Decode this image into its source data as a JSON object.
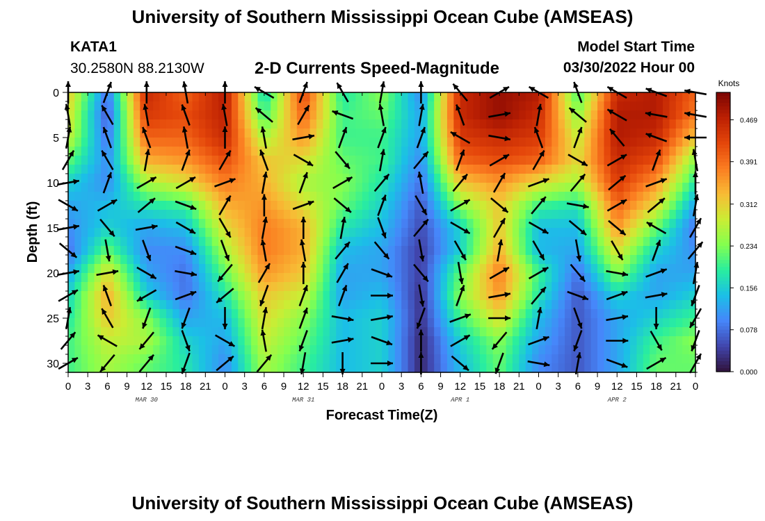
{
  "header": {
    "title": "University of Southern Mississippi Ocean Cube (AMSEAS)",
    "station_id": "KATA1",
    "coordinates": "30.2580N  88.2130W",
    "plot_title": "2-D Currents Speed-Magnitude",
    "model_start_label": "Model Start Time",
    "model_start_value": "03/30/2022 Hour 00"
  },
  "footer": {
    "title": "University of Southern Mississippi Ocean Cube (AMSEAS)"
  },
  "chart_data": {
    "type": "heatmap",
    "xlabel": "Forecast Time(Z)",
    "ylabel": "Depth (ft)",
    "x_tick_labels": [
      "0",
      "3",
      "6",
      "9",
      "12",
      "15",
      "18",
      "21",
      "0",
      "3",
      "6",
      "9",
      "12",
      "15",
      "18",
      "21",
      "0",
      "3",
      "6",
      "9",
      "12",
      "15",
      "18",
      "21",
      "0",
      "3",
      "6",
      "9",
      "12",
      "15",
      "18",
      "21",
      "0"
    ],
    "day_labels": [
      {
        "label": "MAR 30",
        "hour": 12
      },
      {
        "label": "MAR 31",
        "hour": 36
      },
      {
        "label": "APR 1",
        "hour": 60
      },
      {
        "label": "APR 2",
        "hour": 84
      }
    ],
    "xlim": [
      0,
      96
    ],
    "ylim": [
      0,
      31
    ],
    "y_ticks": [
      0,
      5,
      10,
      15,
      20,
      25,
      30
    ],
    "colorbar": {
      "title": "Knots",
      "range": [
        0.0,
        0.52
      ],
      "tick_labels": [
        "0.469",
        "0.391",
        "0.312",
        "0.234",
        "0.156",
        "0.078",
        "0.000"
      ],
      "tick_values": [
        0.469,
        0.391,
        0.312,
        0.234,
        0.156,
        0.078,
        0.0
      ],
      "colormap": [
        "#30123b",
        "#4146ad",
        "#4686fa",
        "#1bbfe7",
        "#29ee9e",
        "#84ff4f",
        "#cbed34",
        "#f8bb35",
        "#fb7d21",
        "#e4460a",
        "#bc2003",
        "#7a0403"
      ]
    },
    "depths": [
      0,
      2.5,
      5,
      7.5,
      10,
      12.5,
      15,
      17.5,
      20,
      22.5,
      25,
      27.5,
      30
    ],
    "hours": [
      0,
      6,
      12,
      18,
      24,
      30,
      36,
      42,
      48,
      54,
      60,
      66,
      72,
      78,
      84,
      90,
      96
    ],
    "speed_knots": [
      [
        0.32,
        0.08,
        0.46,
        0.4,
        0.48,
        0.16,
        0.43,
        0.18,
        0.24,
        0.1,
        0.46,
        0.5,
        0.48,
        0.2,
        0.46,
        0.48,
        0.4
      ],
      [
        0.3,
        0.06,
        0.44,
        0.42,
        0.47,
        0.2,
        0.4,
        0.2,
        0.22,
        0.12,
        0.46,
        0.5,
        0.46,
        0.24,
        0.48,
        0.48,
        0.38
      ],
      [
        0.28,
        0.08,
        0.4,
        0.4,
        0.46,
        0.26,
        0.36,
        0.2,
        0.2,
        0.12,
        0.44,
        0.46,
        0.44,
        0.28,
        0.48,
        0.46,
        0.32
      ],
      [
        0.22,
        0.1,
        0.34,
        0.36,
        0.42,
        0.32,
        0.3,
        0.22,
        0.2,
        0.1,
        0.4,
        0.42,
        0.4,
        0.3,
        0.46,
        0.42,
        0.24
      ],
      [
        0.16,
        0.1,
        0.26,
        0.3,
        0.38,
        0.34,
        0.26,
        0.24,
        0.18,
        0.08,
        0.32,
        0.36,
        0.3,
        0.26,
        0.44,
        0.36,
        0.18
      ],
      [
        0.12,
        0.14,
        0.18,
        0.2,
        0.34,
        0.36,
        0.3,
        0.22,
        0.16,
        0.06,
        0.24,
        0.32,
        0.2,
        0.18,
        0.4,
        0.3,
        0.12
      ],
      [
        0.1,
        0.16,
        0.12,
        0.14,
        0.3,
        0.38,
        0.34,
        0.18,
        0.14,
        0.05,
        0.16,
        0.32,
        0.14,
        0.14,
        0.36,
        0.22,
        0.08
      ],
      [
        0.08,
        0.22,
        0.1,
        0.1,
        0.26,
        0.38,
        0.34,
        0.14,
        0.12,
        0.04,
        0.16,
        0.34,
        0.14,
        0.12,
        0.3,
        0.16,
        0.1
      ],
      [
        0.12,
        0.3,
        0.12,
        0.08,
        0.22,
        0.36,
        0.32,
        0.12,
        0.12,
        0.04,
        0.22,
        0.38,
        0.2,
        0.08,
        0.24,
        0.12,
        0.12
      ],
      [
        0.16,
        0.34,
        0.16,
        0.08,
        0.18,
        0.32,
        0.28,
        0.12,
        0.14,
        0.03,
        0.24,
        0.36,
        0.18,
        0.06,
        0.16,
        0.12,
        0.16
      ],
      [
        0.18,
        0.32,
        0.24,
        0.12,
        0.14,
        0.3,
        0.24,
        0.14,
        0.16,
        0.03,
        0.2,
        0.3,
        0.14,
        0.06,
        0.12,
        0.16,
        0.2
      ],
      [
        0.2,
        0.28,
        0.26,
        0.16,
        0.12,
        0.28,
        0.22,
        0.14,
        0.16,
        0.02,
        0.16,
        0.24,
        0.12,
        0.06,
        0.12,
        0.2,
        0.24
      ],
      [
        0.2,
        0.26,
        0.22,
        0.18,
        0.1,
        0.26,
        0.2,
        0.14,
        0.16,
        0.02,
        0.14,
        0.22,
        0.1,
        0.06,
        0.12,
        0.22,
        0.22
      ]
    ],
    "arrows_note_hidden": "",
    "arrow_directions_deg": [
      [
        0,
        20,
        0,
        350,
        0,
        300,
        20,
        330,
        10,
        0,
        320,
        60,
        300,
        340,
        300,
        290,
        280
      ],
      [
        350,
        330,
        350,
        340,
        350,
        310,
        30,
        290,
        350,
        10,
        340,
        80,
        10,
        310,
        300,
        280,
        280
      ],
      [
        10,
        340,
        340,
        350,
        0,
        350,
        80,
        20,
        20,
        20,
        300,
        100,
        340,
        20,
        320,
        290,
        270
      ],
      [
        30,
        330,
        10,
        20,
        30,
        340,
        120,
        140,
        10,
        40,
        20,
        60,
        30,
        120,
        60,
        20,
        350
      ],
      [
        80,
        20,
        60,
        60,
        70,
        10,
        20,
        60,
        40,
        350,
        40,
        30,
        70,
        40,
        50,
        70,
        0
      ],
      [
        120,
        60,
        50,
        110,
        30,
        0,
        70,
        130,
        20,
        150,
        60,
        130,
        40,
        100,
        60,
        50,
        10
      ],
      [
        80,
        140,
        80,
        120,
        150,
        10,
        0,
        10,
        160,
        40,
        120,
        30,
        120,
        130,
        130,
        300,
        30
      ],
      [
        130,
        170,
        160,
        110,
        160,
        350,
        350,
        40,
        140,
        170,
        150,
        10,
        150,
        170,
        150,
        20,
        40
      ],
      [
        80,
        80,
        120,
        100,
        220,
        30,
        0,
        30,
        110,
        140,
        170,
        60,
        60,
        140,
        100,
        70,
        10
      ],
      [
        60,
        340,
        240,
        70,
        230,
        200,
        20,
        20,
        90,
        170,
        20,
        80,
        40,
        110,
        70,
        80,
        200
      ],
      [
        10,
        330,
        200,
        200,
        180,
        10,
        20,
        100,
        80,
        200,
        70,
        90,
        10,
        160,
        80,
        180,
        210
      ],
      [
        40,
        300,
        220,
        160,
        120,
        350,
        200,
        80,
        110,
        0,
        60,
        220,
        70,
        200,
        90,
        150,
        200
      ],
      [
        60,
        220,
        40,
        200,
        50,
        40,
        190,
        180,
        90,
        0,
        130,
        200,
        100,
        10,
        110,
        60,
        30
      ]
    ]
  }
}
